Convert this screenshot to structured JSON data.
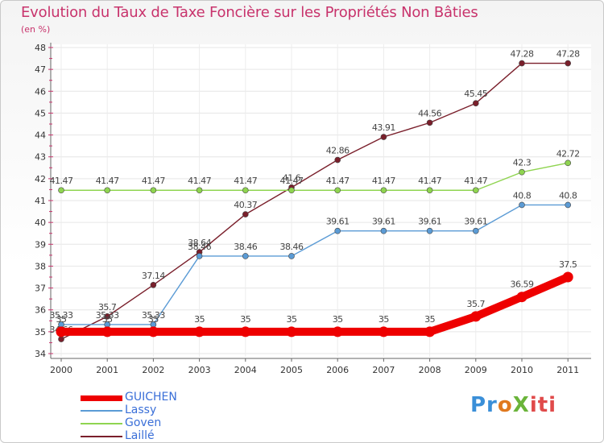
{
  "chart_data": {
    "type": "line",
    "title": "Evolution du Taux de Taxe Foncière sur les Propriétés Non Bâties",
    "subtitle": "(en %)",
    "xlabel": "",
    "ylabel": "",
    "ylim": [
      34,
      48
    ],
    "yticks": [
      "34",
      "35",
      "36",
      "37",
      "38",
      "39",
      "40",
      "41",
      "42",
      "43",
      "44",
      "45",
      "46",
      "47",
      "48"
    ],
    "categories": [
      "2000",
      "2001",
      "2002",
      "2003",
      "2004",
      "2005",
      "2006",
      "2007",
      "2008",
      "2009",
      "2010",
      "2011"
    ],
    "series": [
      {
        "name": "Laillé",
        "color": "#7a1f2b",
        "values": [
          34.66,
          35.7,
          37.14,
          38.64,
          40.37,
          41.6,
          42.86,
          43.91,
          44.56,
          45.45,
          47.28,
          47.28
        ],
        "labels": [
          "34.66",
          "35.7",
          "37.14",
          "38.64",
          "40.37",
          "41.6",
          "42.86",
          "43.91",
          "44.56",
          "45.45",
          "47.28",
          "47.28"
        ]
      },
      {
        "name": "Goven",
        "color": "#8fd450",
        "values": [
          41.47,
          41.47,
          41.47,
          41.47,
          41.47,
          41.47,
          41.47,
          41.47,
          41.47,
          41.47,
          42.3,
          42.72
        ],
        "labels": [
          "41.47",
          "41.47",
          "41.47",
          "41.47",
          "41.47",
          "41.47",
          "41.47",
          "41.47",
          "41.47",
          "41.47",
          "42.3",
          "42.72"
        ]
      },
      {
        "name": "Lassy",
        "color": "#5b9bd5",
        "values": [
          35.33,
          35.33,
          35.33,
          38.46,
          38.46,
          38.46,
          39.61,
          39.61,
          39.61,
          39.61,
          40.8,
          40.8
        ],
        "labels": [
          "35.33",
          "35.33",
          "35.33",
          "38.46",
          "38.46",
          "38.46",
          "39.61",
          "39.61",
          "39.61",
          "39.61",
          "40.8",
          "40.8"
        ]
      },
      {
        "name": "GUICHEN",
        "color": "#ee0000",
        "values": [
          35,
          35,
          35,
          35,
          35,
          35,
          35,
          35,
          35,
          35.7,
          36.59,
          37.5
        ],
        "labels": [
          "35",
          "35",
          "35",
          "35",
          "35",
          "35",
          "35",
          "35",
          "35",
          "35.7",
          "36.59",
          "37.5"
        ]
      }
    ],
    "legend": [
      {
        "name": "GUICHEN",
        "color": "#ee0000",
        "text_color": "#3a6fd8"
      },
      {
        "name": "Lassy",
        "color": "#5b9bd5",
        "text_color": "#3a6fd8"
      },
      {
        "name": "Goven",
        "color": "#8fd450",
        "text_color": "#3a6fd8"
      },
      {
        "name": "Laillé",
        "color": "#7a1f2b",
        "text_color": "#3a6fd8"
      }
    ],
    "legend_position": "bottom-left"
  },
  "logo": {
    "text": "ProXiti"
  }
}
